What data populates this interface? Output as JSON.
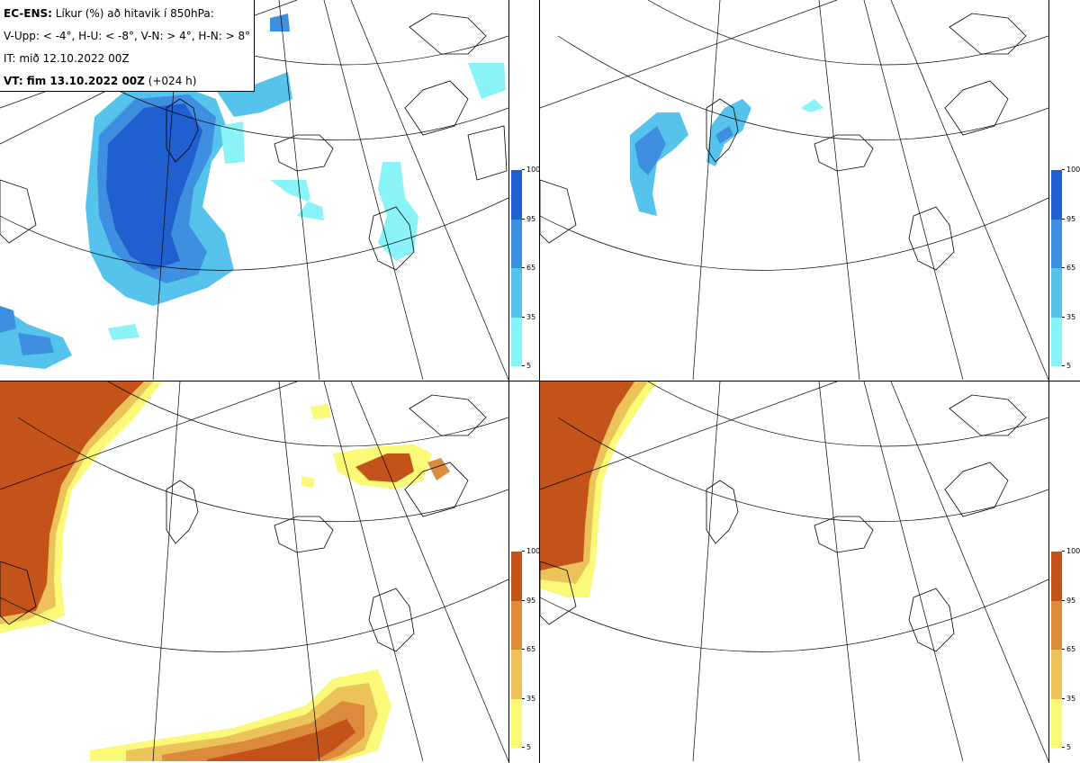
{
  "header": {
    "line1_bold": "EC-ENS:",
    "line1_rest": " Líkur (%) að hitavik í 850hPa:",
    "line2": "V-Upp: < -4°, H-U: < -8°, V-N: > 4°, H-N: > 8°",
    "line3": "IT: mið 12.10.2022 00Z",
    "line4_bold": "VT: fim 13.10.2022 00Z",
    "line4_rest": " (+024 h)"
  },
  "colorbars": {
    "cold": {
      "ticks": [
        "100",
        "95",
        "65",
        "35",
        "5"
      ],
      "colors": [
        "#1f5fd0",
        "#3f8fe0",
        "#55c3ec",
        "#8af3f8"
      ]
    },
    "warm": {
      "ticks": [
        "100",
        "95",
        "65",
        "35",
        "5"
      ],
      "colors": [
        "#c4531a",
        "#dc8a3c",
        "#ecc25a",
        "#fafa78"
      ]
    }
  },
  "panels": [
    {
      "id": "upper-left",
      "variable": "V-Upp: < -4°",
      "scale": "cold"
    },
    {
      "id": "upper-right",
      "variable": "H-U: < -8°",
      "scale": "cold"
    },
    {
      "id": "lower-left",
      "variable": "V-N: > 4°",
      "scale": "warm"
    },
    {
      "id": "lower-right",
      "variable": "H-N: > 8°",
      "scale": "warm"
    }
  ]
}
